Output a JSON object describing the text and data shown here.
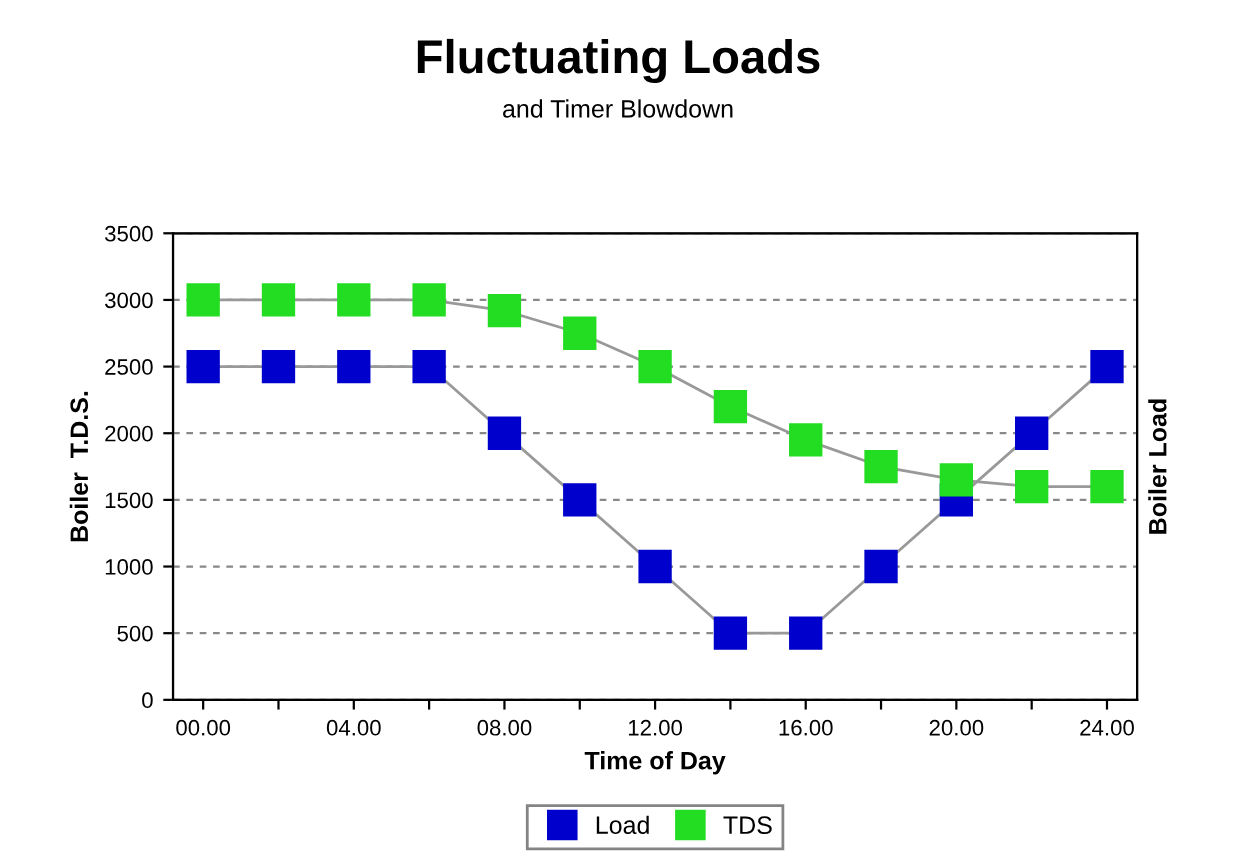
{
  "chart_data": {
    "type": "line",
    "title": "Fluctuating Loads",
    "subtitle": "and Timer Blowdown",
    "xlabel": "Time of Day",
    "ylabel": "Boiler  T.D.S.",
    "y2label": "Boiler Load",
    "categories": [
      "00.00",
      null,
      "04.00",
      null,
      "08.00",
      null,
      "12.00",
      null,
      "16.00",
      null,
      "20.00",
      null,
      "24.00"
    ],
    "series": [
      {
        "name": "Load",
        "color": "#0000cc",
        "values": [
          2500,
          2500,
          2500,
          2500,
          2000,
          1500,
          1000,
          500,
          500,
          1000,
          1500,
          2000,
          2500
        ]
      },
      {
        "name": "TDS",
        "color": "#22dd22",
        "values": [
          3000,
          3000,
          3000,
          3000,
          2920,
          2750,
          2500,
          2200,
          1950,
          1750,
          1650,
          1600,
          1600
        ]
      }
    ],
    "ylim": [
      0,
      3500
    ],
    "yticks": [
      0,
      500,
      1000,
      1500,
      2000,
      2500,
      3000,
      3500
    ],
    "grid": "y",
    "legend": "bottom",
    "marker": "square",
    "line_style": "solid"
  }
}
